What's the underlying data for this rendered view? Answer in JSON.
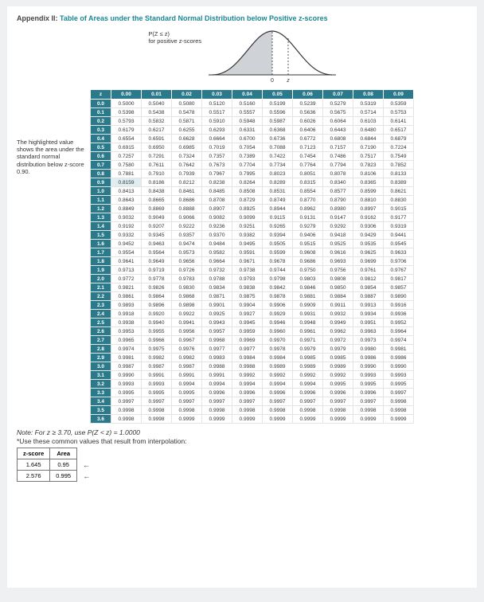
{
  "appendix": {
    "title_prefix": "Appendix II:",
    "title_rest": "Table of Areas under the Standard Normal Distribution below Positive z-scores",
    "fig_line1": "P(Z ≤ z)",
    "fig_line2": "for positive z-scores",
    "axis_zero": "0",
    "axis_z": "z"
  },
  "curve": {
    "fill": "#cfd3d7",
    "stroke": "#333333",
    "axis": "#333333",
    "dash": "#333333",
    "width": 160,
    "height": 70
  },
  "sidenote": "The highlighted value shows the area under the standard normal distribution below z-score 0.90.",
  "ztable": {
    "corner": "z",
    "col_headers": [
      "0.00",
      "0.01",
      "0.02",
      "0.03",
      "0.04",
      "0.05",
      "0.06",
      "0.07",
      "0.08",
      "0.09"
    ],
    "row_headers": [
      "0.0",
      "0.1",
      "0.2",
      "0.3",
      "0.4",
      "0.5",
      "0.6",
      "0.7",
      "0.8",
      "0.9",
      "1.0",
      "1.1",
      "1.2",
      "1.3",
      "1.4",
      "1.5",
      "1.6",
      "1.7",
      "1.8",
      "1.9",
      "2.0",
      "2.1",
      "2.2",
      "2.3",
      "2.4",
      "2.5",
      "2.6",
      "2.7",
      "2.8",
      "2.9",
      "3.0",
      "3.1",
      "3.2",
      "3.3",
      "3.4",
      "3.5",
      "3.6"
    ],
    "rows": [
      [
        "0.5000",
        "0.5040",
        "0.5080",
        "0.5120",
        "0.5160",
        "0.5199",
        "0.5239",
        "0.5279",
        "0.5319",
        "0.5359"
      ],
      [
        "0.5398",
        "0.5438",
        "0.5478",
        "0.5517",
        "0.5557",
        "0.5596",
        "0.5636",
        "0.5675",
        "0.5714",
        "0.5753"
      ],
      [
        "0.5793",
        "0.5832",
        "0.5871",
        "0.5910",
        "0.5948",
        "0.5987",
        "0.6026",
        "0.6064",
        "0.6103",
        "0.6141"
      ],
      [
        "0.6179",
        "0.6217",
        "0.6255",
        "0.6293",
        "0.6331",
        "0.6368",
        "0.6406",
        "0.6443",
        "0.6480",
        "0.6517"
      ],
      [
        "0.6554",
        "0.6591",
        "0.6628",
        "0.6664",
        "0.6700",
        "0.6736",
        "0.6772",
        "0.6808",
        "0.6844",
        "0.6879"
      ],
      [
        "0.6915",
        "0.6950",
        "0.6985",
        "0.7019",
        "0.7054",
        "0.7088",
        "0.7123",
        "0.7157",
        "0.7190",
        "0.7224"
      ],
      [
        "0.7257",
        "0.7291",
        "0.7324",
        "0.7357",
        "0.7389",
        "0.7422",
        "0.7454",
        "0.7486",
        "0.7517",
        "0.7549"
      ],
      [
        "0.7580",
        "0.7611",
        "0.7642",
        "0.7673",
        "0.7704",
        "0.7734",
        "0.7764",
        "0.7794",
        "0.7823",
        "0.7852"
      ],
      [
        "0.7881",
        "0.7910",
        "0.7939",
        "0.7967",
        "0.7995",
        "0.8023",
        "0.8051",
        "0.8078",
        "0.8106",
        "0.8133"
      ],
      [
        "0.8159",
        "0.8186",
        "0.8212",
        "0.8238",
        "0.8264",
        "0.8289",
        "0.8315",
        "0.8340",
        "0.8365",
        "0.8389"
      ],
      [
        "0.8413",
        "0.8438",
        "0.8461",
        "0.8485",
        "0.8508",
        "0.8531",
        "0.8554",
        "0.8577",
        "0.8599",
        "0.8621"
      ],
      [
        "0.8643",
        "0.8665",
        "0.8686",
        "0.8708",
        "0.8729",
        "0.8749",
        "0.8770",
        "0.8790",
        "0.8810",
        "0.8830"
      ],
      [
        "0.8849",
        "0.8869",
        "0.8888",
        "0.8907",
        "0.8925",
        "0.8944",
        "0.8962",
        "0.8980",
        "0.8997",
        "0.9015"
      ],
      [
        "0.9032",
        "0.9049",
        "0.9066",
        "0.9082",
        "0.9099",
        "0.9115",
        "0.9131",
        "0.9147",
        "0.9162",
        "0.9177"
      ],
      [
        "0.9192",
        "0.9207",
        "0.9222",
        "0.9236",
        "0.9251",
        "0.9265",
        "0.9279",
        "0.9292",
        "0.9306",
        "0.9319"
      ],
      [
        "0.9332",
        "0.9345",
        "0.9357",
        "0.9370",
        "0.9382",
        "0.9394",
        "0.9406",
        "0.9418",
        "0.9429",
        "0.9441"
      ],
      [
        "0.9452",
        "0.9463",
        "0.9474",
        "0.9484",
        "0.9495",
        "0.9505",
        "0.9515",
        "0.9525",
        "0.9535",
        "0.9545"
      ],
      [
        "0.9554",
        "0.9564",
        "0.9573",
        "0.9582",
        "0.9591",
        "0.9599",
        "0.9608",
        "0.9616",
        "0.9625",
        "0.9633"
      ],
      [
        "0.9641",
        "0.9649",
        "0.9656",
        "0.9664",
        "0.9671",
        "0.9678",
        "0.9686",
        "0.9693",
        "0.9699",
        "0.9706"
      ],
      [
        "0.9713",
        "0.9719",
        "0.9726",
        "0.9732",
        "0.9738",
        "0.9744",
        "0.9750",
        "0.9756",
        "0.9761",
        "0.9767"
      ],
      [
        "0.9772",
        "0.9778",
        "0.9783",
        "0.9788",
        "0.9793",
        "0.9798",
        "0.9803",
        "0.9808",
        "0.9812",
        "0.9817"
      ],
      [
        "0.9821",
        "0.9826",
        "0.9830",
        "0.9834",
        "0.9838",
        "0.9842",
        "0.9846",
        "0.9850",
        "0.9854",
        "0.9857"
      ],
      [
        "0.9861",
        "0.9864",
        "0.9868",
        "0.9871",
        "0.9875",
        "0.9878",
        "0.9881",
        "0.9884",
        "0.9887",
        "0.9890"
      ],
      [
        "0.9893",
        "0.9896",
        "0.9898",
        "0.9901",
        "0.9904",
        "0.9906",
        "0.9909",
        "0.9911",
        "0.9913",
        "0.9916"
      ],
      [
        "0.9918",
        "0.9920",
        "0.9922",
        "0.9925",
        "0.9927",
        "0.9929",
        "0.9931",
        "0.9932",
        "0.9934",
        "0.9936"
      ],
      [
        "0.9938",
        "0.9940",
        "0.9941",
        "0.9943",
        "0.9945",
        "0.9946",
        "0.9948",
        "0.9949",
        "0.9951",
        "0.9952"
      ],
      [
        "0.9953",
        "0.9955",
        "0.9956",
        "0.9957",
        "0.9959",
        "0.9960",
        "0.9961",
        "0.9962",
        "0.9963",
        "0.9964"
      ],
      [
        "0.9965",
        "0.9966",
        "0.9967",
        "0.9968",
        "0.9969",
        "0.9970",
        "0.9971",
        "0.9972",
        "0.9973",
        "0.9974"
      ],
      [
        "0.9974",
        "0.9975",
        "0.9976",
        "0.9977",
        "0.9977",
        "0.9978",
        "0.9979",
        "0.9979",
        "0.9980",
        "0.9981"
      ],
      [
        "0.9981",
        "0.9982",
        "0.9982",
        "0.9983",
        "0.9984",
        "0.9984",
        "0.9985",
        "0.9985",
        "0.9986",
        "0.9986"
      ],
      [
        "0.9987",
        "0.9987",
        "0.9987",
        "0.9988",
        "0.9988",
        "0.9989",
        "0.9989",
        "0.9989",
        "0.9990",
        "0.9990"
      ],
      [
        "0.9990",
        "0.9991",
        "0.9991",
        "0.9991",
        "0.9992",
        "0.9992",
        "0.9992",
        "0.9992",
        "0.9993",
        "0.9993"
      ],
      [
        "0.9993",
        "0.9993",
        "0.9994",
        "0.9994",
        "0.9994",
        "0.9994",
        "0.9994",
        "0.9995",
        "0.9995",
        "0.9995"
      ],
      [
        "0.9995",
        "0.9995",
        "0.9995",
        "0.9996",
        "0.9996",
        "0.9996",
        "0.9996",
        "0.9996",
        "0.9996",
        "0.9997"
      ],
      [
        "0.9997",
        "0.9997",
        "0.9997",
        "0.9997",
        "0.9997",
        "0.9997",
        "0.9997",
        "0.9997",
        "0.9997",
        "0.9998"
      ],
      [
        "0.9998",
        "0.9998",
        "0.9998",
        "0.9998",
        "0.9998",
        "0.9998",
        "0.9998",
        "0.9998",
        "0.9998",
        "0.9998"
      ],
      [
        "0.9998",
        "0.9998",
        "0.9999",
        "0.9999",
        "0.9999",
        "0.9999",
        "0.9999",
        "0.9999",
        "0.9999",
        "0.9999"
      ]
    ],
    "highlight": {
      "row": 9,
      "col": 0
    },
    "header_bg": "#2a7a8c",
    "highlight_bg": "#dfeef1"
  },
  "note": "Note: For z ≥ 3.70, use P(Z < z) = 1.0000",
  "note2": "*Use these common values that result from interpolation:",
  "common": {
    "headers": [
      "z-score",
      "Area"
    ],
    "rows": [
      [
        "1.645",
        "0.95"
      ],
      [
        "2.576",
        "0.995"
      ]
    ]
  }
}
